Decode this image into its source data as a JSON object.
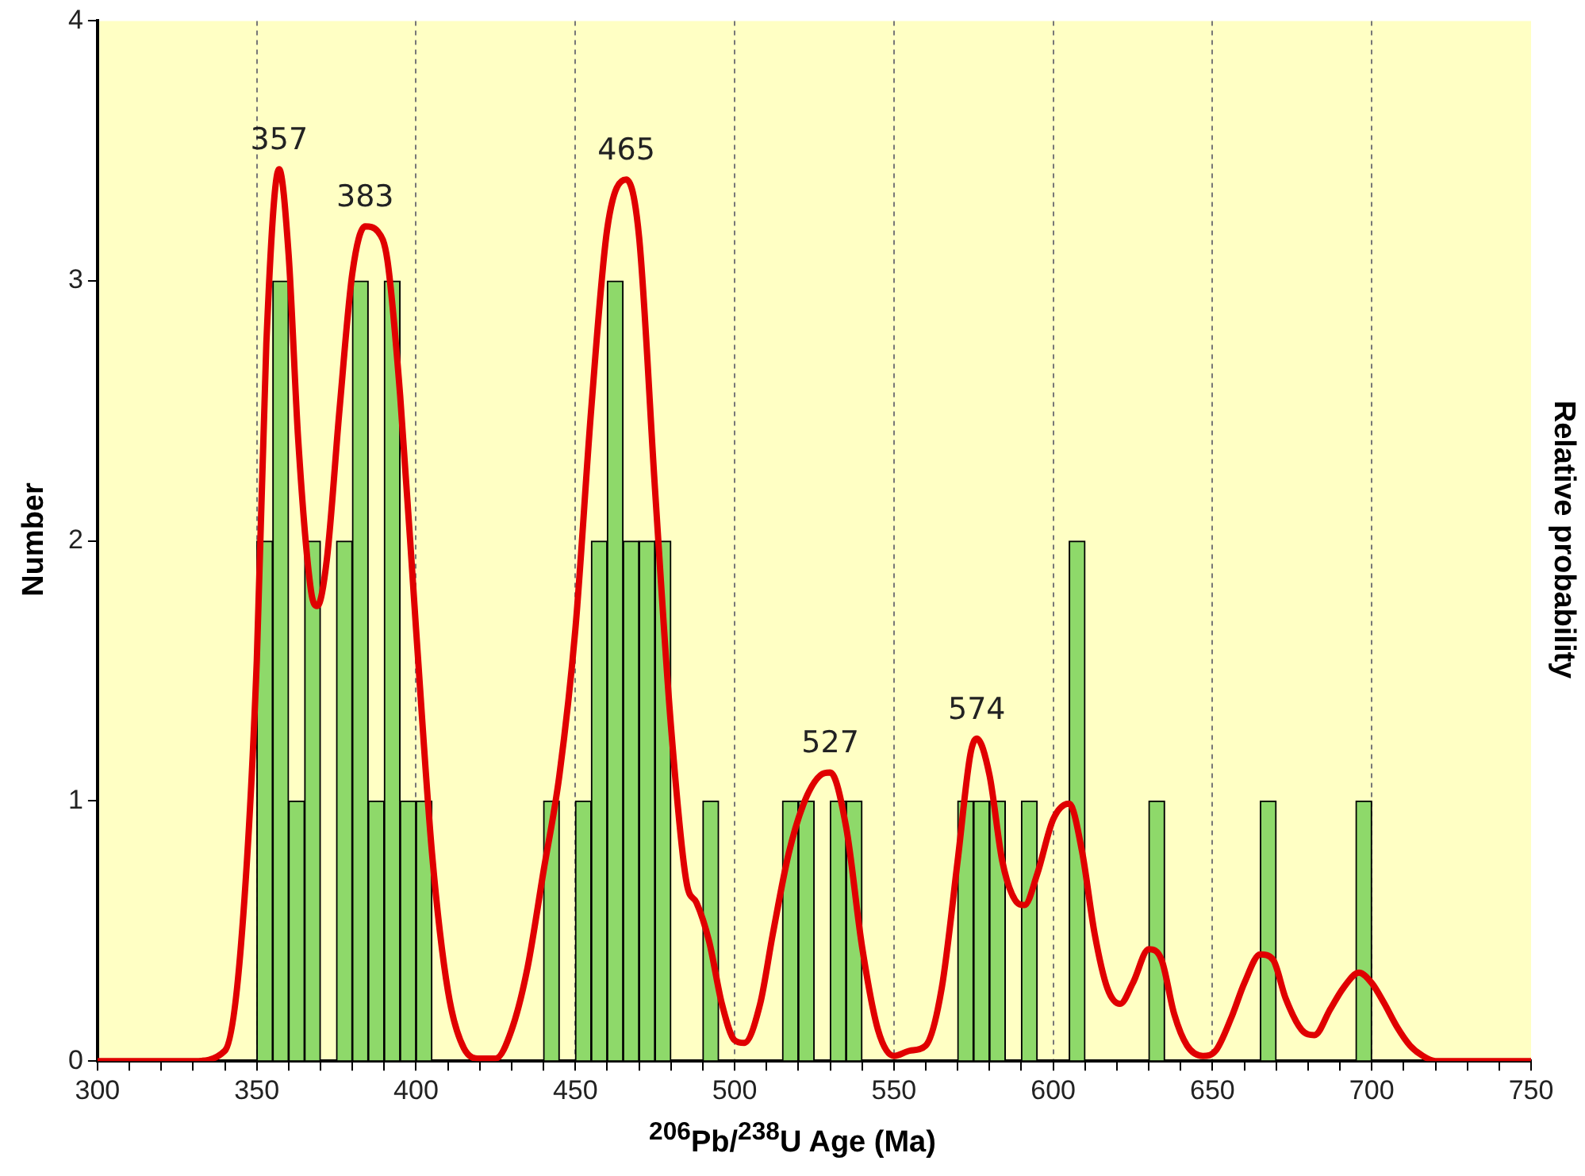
{
  "chart_data": {
    "type": "histogram",
    "xlabel": "$^{206}$Pb/$^{238}$U Age (Ma)",
    "ylabel": "Number",
    "y2label": "Relative probability",
    "color": "#8ed96a",
    "bins": [
      350,
      355,
      360,
      365,
      370,
      375,
      380,
      385,
      390,
      395,
      400,
      405,
      410,
      415,
      420,
      425,
      430,
      435,
      440,
      445,
      450,
      455,
      460,
      465,
      470,
      475,
      480,
      485,
      490,
      495,
      500,
      505,
      510,
      515,
      520,
      525,
      530,
      535,
      540,
      545,
      550,
      555,
      560,
      565,
      570,
      575,
      580,
      585,
      590,
      595,
      600,
      605,
      610,
      615,
      620,
      625,
      630,
      635,
      640,
      645,
      650,
      655,
      660,
      665,
      670,
      675,
      680,
      685,
      690,
      695,
      700
    ],
    "values": [
      2,
      3,
      1,
      2,
      0,
      2,
      3,
      1,
      3,
      1,
      1,
      0,
      0,
      0,
      0,
      0,
      0,
      0,
      1,
      0,
      1,
      2,
      3,
      2,
      2,
      2,
      0,
      0,
      1,
      0,
      0,
      0,
      0,
      1,
      1,
      0,
      1,
      1,
      0,
      0,
      0,
      0,
      0,
      0,
      1,
      1,
      1,
      0,
      1,
      0,
      0,
      2,
      0,
      0,
      0,
      0,
      1,
      0,
      0,
      0,
      0,
      0,
      0,
      1,
      0,
      0,
      0,
      0,
      0,
      1
    ],
    "series": [
      {
        "type": "line",
        "color": "#e00000",
        "x": [
          300,
          330,
          340,
          345,
          350,
          353,
          357,
          360,
          363,
          367,
          369,
          372,
          376,
          380,
          384,
          388,
          391,
          395,
          400,
          405,
          410,
          415,
          420,
          425,
          430,
          435,
          440,
          445,
          450,
          455,
          460,
          466,
          470,
          475,
          480,
          485,
          488,
          492,
          496,
          500,
          503,
          508,
          512,
          517,
          522,
          527,
          530,
          535,
          540,
          545,
          550,
          555,
          560,
          565,
          570,
          574,
          576,
          580,
          584,
          588,
          591,
          595,
          600,
          605,
          609,
          613,
          617,
          621,
          625,
          630,
          634,
          638,
          642,
          647,
          651,
          656,
          660,
          665,
          669,
          673,
          678,
          682,
          687,
          691,
          696,
          700,
          704,
          708,
          712,
          716,
          720,
          750
        ],
        "values": [
          0,
          0,
          0.04,
          0.44,
          1.54,
          2.76,
          3.43,
          3.1,
          2.39,
          1.81,
          1.75,
          1.93,
          2.51,
          3.03,
          3.21,
          3.19,
          3.08,
          2.56,
          1.66,
          0.8,
          0.27,
          0.05,
          0.01,
          0.01,
          0.12,
          0.36,
          0.73,
          1.1,
          1.66,
          2.51,
          3.2,
          3.39,
          3.17,
          2.2,
          1.29,
          0.68,
          0.61,
          0.46,
          0.22,
          0.08,
          0.07,
          0.22,
          0.49,
          0.8,
          1,
          1.1,
          1.11,
          0.9,
          0.44,
          0.12,
          0.02,
          0.04,
          0.06,
          0.28,
          0.77,
          1.18,
          1.24,
          1.1,
          0.77,
          0.62,
          0.6,
          0.72,
          0.93,
          0.99,
          0.81,
          0.49,
          0.28,
          0.22,
          0.3,
          0.43,
          0.39,
          0.18,
          0.06,
          0.02,
          0.04,
          0.17,
          0.3,
          0.41,
          0.39,
          0.24,
          0.12,
          0.1,
          0.2,
          0.28,
          0.34,
          0.3,
          0.22,
          0.13,
          0.06,
          0.02,
          0,
          0
        ]
      }
    ],
    "xlim": [
      300,
      750
    ],
    "xticks": [
      300,
      {
        "value": 310,
        "label": null
      },
      {
        "value": 320,
        "label": null
      },
      {
        "value": 330,
        "label": null
      },
      {
        "value": 340,
        "label": null
      },
      350,
      {
        "value": 360,
        "label": null
      },
      {
        "value": 370,
        "label": null
      },
      {
        "value": 380,
        "label": null
      },
      {
        "value": 390,
        "label": null
      },
      400,
      {
        "value": 410,
        "label": null
      },
      {
        "value": 420,
        "label": null
      },
      {
        "value": 430,
        "label": null
      },
      {
        "value": 440,
        "label": null
      },
      450,
      {
        "value": 460,
        "label": null
      },
      {
        "value": 470,
        "label": null
      },
      {
        "value": 480,
        "label": null
      },
      {
        "value": 490,
        "label": null
      },
      500,
      {
        "value": 510,
        "label": null
      },
      {
        "value": 520,
        "label": null
      },
      {
        "value": 530,
        "label": null
      },
      {
        "value": 540,
        "label": null
      },
      550,
      {
        "value": 560,
        "label": null
      },
      {
        "value": 570,
        "label": null
      },
      {
        "value": 580,
        "label": null
      },
      {
        "value": 590,
        "label": null
      },
      600,
      {
        "value": 610,
        "label": null
      },
      {
        "value": 620,
        "label": null
      },
      {
        "value": 630,
        "label": null
      },
      {
        "value": 640,
        "label": null
      },
      650,
      {
        "value": 660,
        "label": null
      },
      {
        "value": 670,
        "label": null
      },
      {
        "value": 680,
        "label": null
      },
      {
        "value": 690,
        "label": null
      },
      700,
      {
        "value": 710,
        "label": null
      },
      {
        "value": 720,
        "label": null
      },
      {
        "value": 730,
        "label": null
      },
      {
        "value": 740,
        "label": null
      },
      750
    ],
    "ylim": [
      0,
      4
    ],
    "yticks": [
      0,
      1,
      2,
      3,
      4
    ],
    "grid": "x",
    "annotations": [
      {
        "text": "357",
        "x": 357,
        "y": 3.43
      },
      {
        "text": "383",
        "x": 384,
        "y": 3.21
      },
      {
        "text": "465",
        "x": 466,
        "y": 3.39
      },
      {
        "text": "527",
        "x": 530,
        "y": 1.11
      },
      {
        "text": "574",
        "x": 576,
        "y": 1.24
      }
    ]
  }
}
